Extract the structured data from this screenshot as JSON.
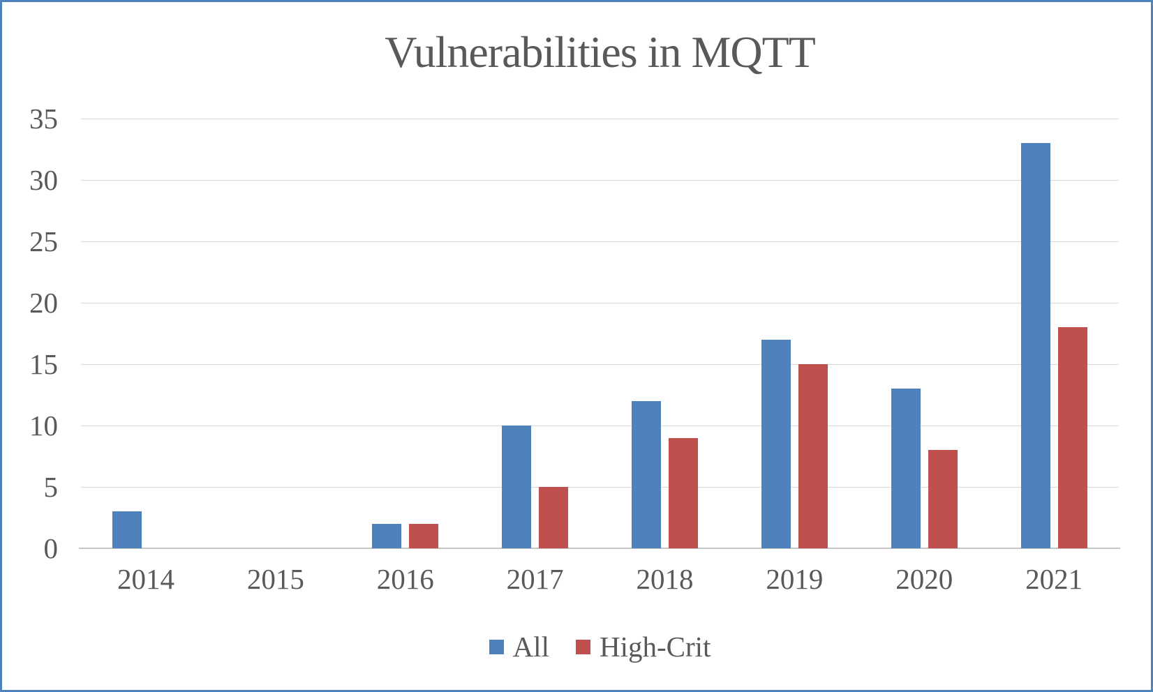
{
  "chart_data": {
    "type": "bar",
    "title": "Vulnerabilities in MQTT",
    "categories": [
      "2014",
      "2015",
      "2016",
      "2017",
      "2018",
      "2019",
      "2020",
      "2021"
    ],
    "series": [
      {
        "name": "All",
        "color": "#4f81bd",
        "values": [
          3,
          0,
          2,
          10,
          12,
          17,
          13,
          33
        ]
      },
      {
        "name": "High-Crit",
        "color": "#c0504d",
        "values": [
          0,
          0,
          2,
          5,
          9,
          15,
          8,
          18
        ]
      }
    ],
    "xlabel": "",
    "ylabel": "",
    "ylim": [
      0,
      35
    ],
    "yticks": [
      0,
      5,
      10,
      15,
      20,
      25,
      30,
      35
    ],
    "grid": "horizontal",
    "legend_position": "bottom"
  },
  "colors": {
    "frame_border": "#4f81bd",
    "text": "#595959",
    "gridline": "#d9d9d9",
    "axis_line": "#c6c6c6",
    "background": "#ffffff"
  }
}
